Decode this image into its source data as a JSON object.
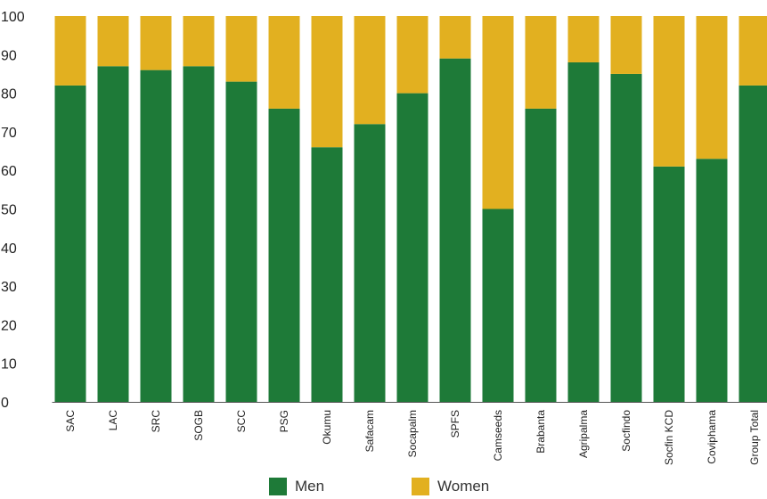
{
  "chart_data": {
    "type": "bar",
    "stacked": true,
    "categories": [
      "SAC",
      "LAC",
      "SRC",
      "SOGB",
      "SCC",
      "PSG",
      "Okumu",
      "Safacam",
      "Socapalm",
      "SPFS",
      "Camseeds",
      "Brabanta",
      "Agripalma",
      "Socfindo",
      "Socfin KCD",
      "Coviphama",
      "Group Total"
    ],
    "series": [
      {
        "name": "Men",
        "color": "#1e7a38",
        "values": [
          82,
          87,
          86,
          87,
          83,
          76,
          66,
          72,
          80,
          89,
          50,
          76,
          88,
          85,
          61,
          63,
          82
        ]
      },
      {
        "name": "Women",
        "color": "#e2b020",
        "values": [
          18,
          13,
          14,
          13,
          17,
          24,
          34,
          28,
          20,
          11,
          50,
          24,
          12,
          15,
          39,
          37,
          18
        ]
      }
    ],
    "yticks": [
      "0",
      "10",
      "20",
      "30",
      "40",
      "50",
      "60",
      "70",
      "80",
      "90",
      "100"
    ],
    "ylim": [
      0,
      100
    ],
    "grid": false,
    "legend": "bottom-center"
  }
}
